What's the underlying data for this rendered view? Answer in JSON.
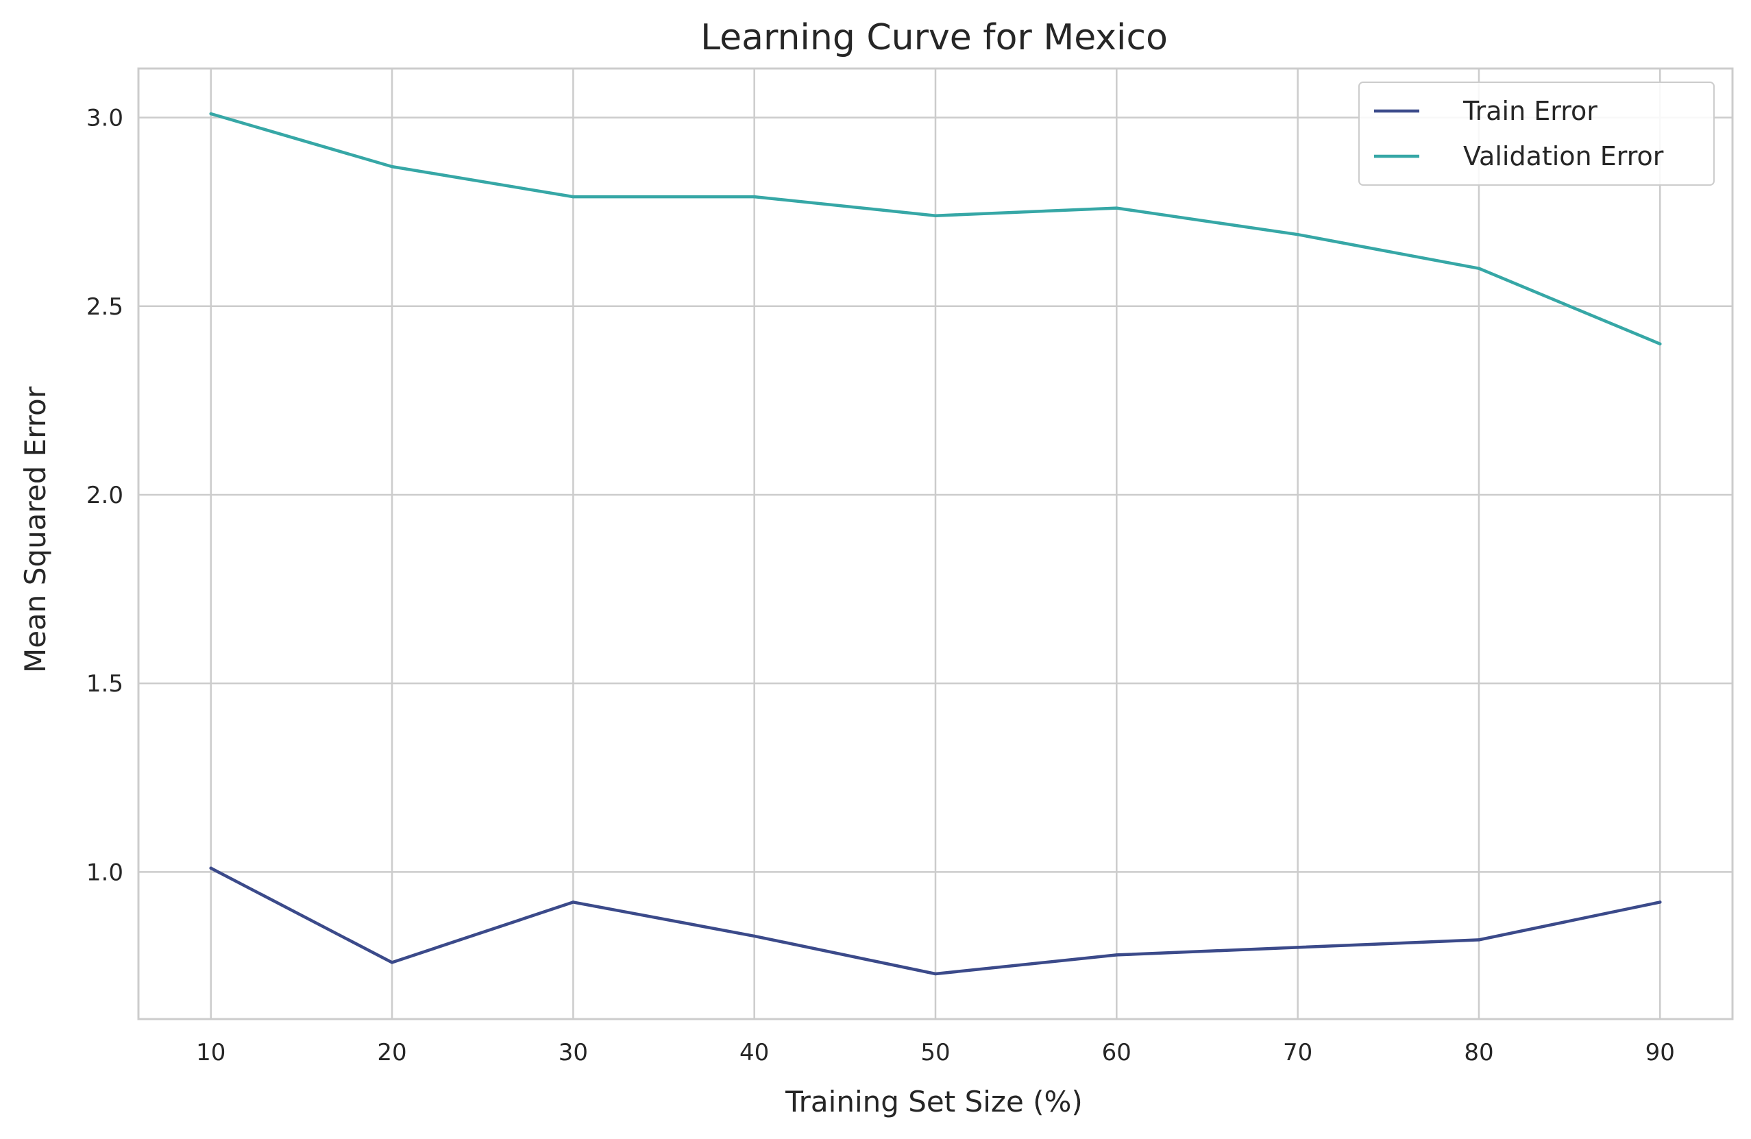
{
  "chart_data": {
    "type": "line",
    "title": "Learning Curve for Mexico",
    "xlabel": "Training Set Size (%)",
    "ylabel": "Mean Squared Error",
    "x": [
      10,
      20,
      30,
      40,
      50,
      60,
      70,
      80,
      90
    ],
    "xlim": [
      6,
      94
    ],
    "ylim": [
      0.61,
      3.13
    ],
    "xticks": [
      10,
      20,
      30,
      40,
      50,
      60,
      70,
      80,
      90
    ],
    "xtick_labels": [
      "10",
      "20",
      "30",
      "40",
      "50",
      "60",
      "70",
      "80",
      "90"
    ],
    "yticks": [
      1.0,
      1.5,
      2.0,
      2.5,
      3.0
    ],
    "ytick_labels": [
      "1.0",
      "1.5",
      "2.0",
      "2.5",
      "3.0"
    ],
    "grid": true,
    "legend_position": "top-right",
    "series": [
      {
        "name": "Train Error",
        "color": "#3b4a8a",
        "values": [
          1.01,
          0.76,
          0.92,
          0.83,
          0.73,
          0.78,
          0.8,
          0.82,
          0.92
        ]
      },
      {
        "name": "Validation Error",
        "color": "#36a7a6",
        "values": [
          3.01,
          2.87,
          2.79,
          2.79,
          2.74,
          2.76,
          2.69,
          2.6,
          2.4
        ]
      }
    ]
  }
}
